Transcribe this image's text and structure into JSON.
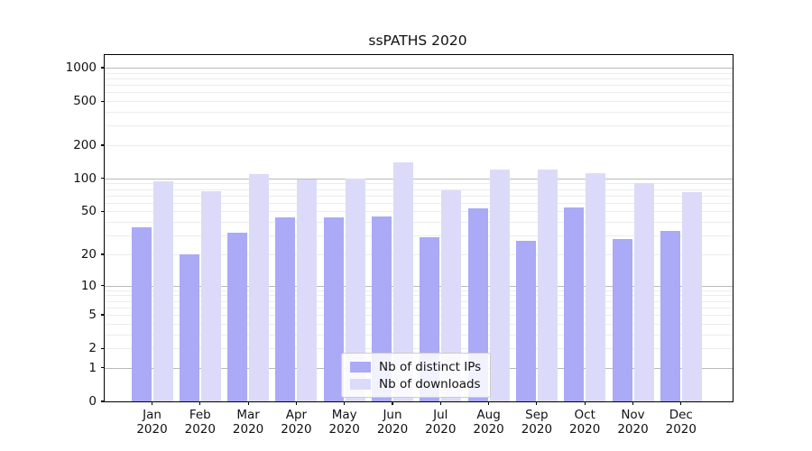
{
  "title": "ssPATHS 2020",
  "legend": {
    "items": [
      {
        "label": "Nb of distinct IPs",
        "color": "#aaaaf6"
      },
      {
        "label": "Nb of downloads",
        "color": "#dbdbf9"
      }
    ]
  },
  "chart_data": {
    "type": "bar",
    "title": "ssPATHS 2020",
    "categories": [
      "Jan 2020",
      "Feb 2020",
      "Mar 2020",
      "Apr 2020",
      "May 2020",
      "Jun 2020",
      "Jul 2020",
      "Aug 2020",
      "Sep 2020",
      "Oct 2020",
      "Nov 2020",
      "Dec 2020"
    ],
    "series": [
      {
        "name": "Nb of distinct IPs",
        "color": "#aaaaf6",
        "values": [
          36,
          20,
          32,
          44,
          44,
          45,
          29,
          53,
          27,
          54,
          28,
          33
        ]
      },
      {
        "name": "Nb of downloads",
        "color": "#dbdbf9",
        "values": [
          95,
          76,
          110,
          98,
          100,
          140,
          78,
          120,
          120,
          112,
          90,
          75
        ]
      }
    ],
    "yscale": "log1p",
    "ylim": [
      0,
      1300
    ],
    "yticks": [
      1000,
      500,
      200,
      100,
      50,
      20,
      10,
      5,
      2,
      1,
      0
    ],
    "ytick_labels": [
      "1000",
      "500",
      "200",
      "100",
      "50",
      "20",
      "10",
      "5",
      "2",
      "1",
      "0"
    ],
    "minor_gridlines": [
      2,
      3,
      4,
      5,
      6,
      7,
      8,
      9,
      20,
      30,
      40,
      50,
      60,
      70,
      80,
      90,
      200,
      300,
      400,
      500,
      600,
      700,
      800,
      900
    ],
    "major_gridlines": [
      1,
      10,
      100,
      1000
    ],
    "grid": true,
    "legend_position": "inside-bottom-center",
    "xlabel": "",
    "ylabel": ""
  }
}
